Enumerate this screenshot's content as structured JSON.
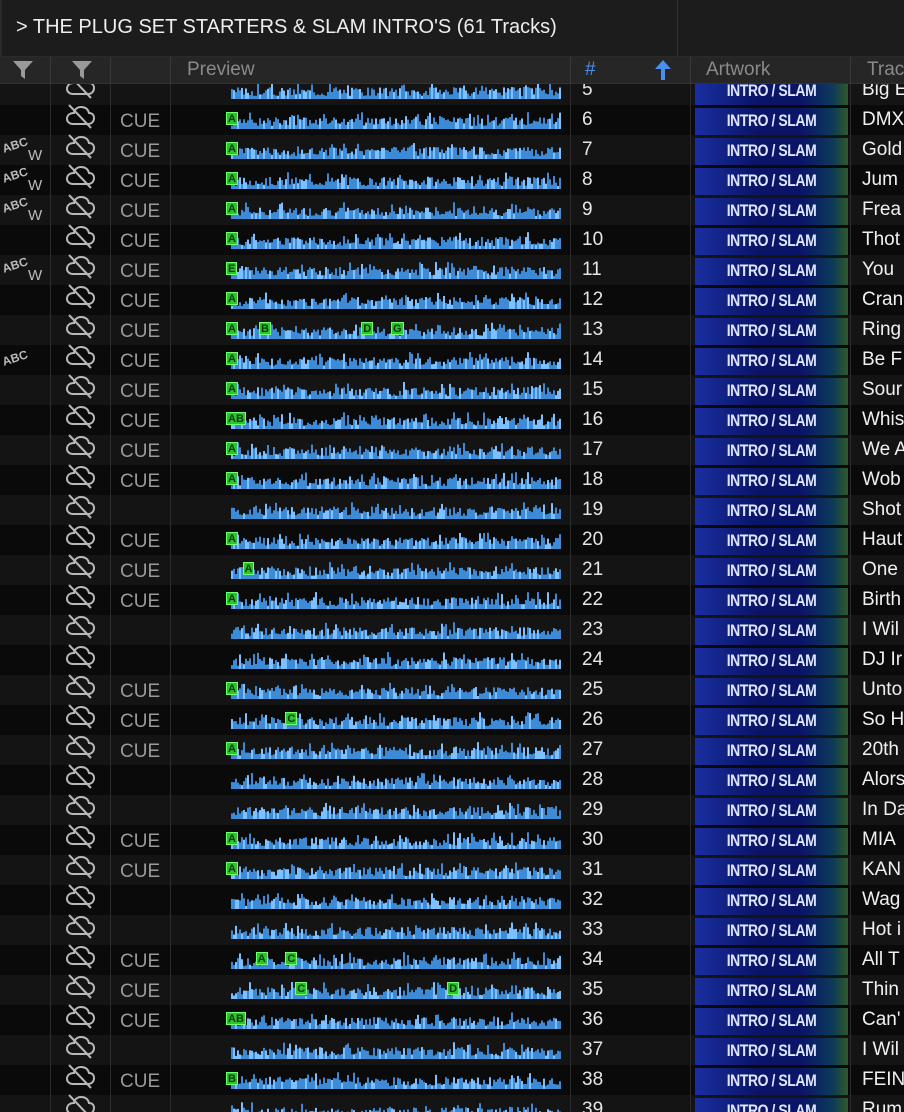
{
  "playlist": {
    "title": "> THE PLUG SET STARTERS & SLAM INTRO'S (61 Tracks)"
  },
  "columns": {
    "preview": "Preview",
    "number": "#",
    "artwork": "Artwork",
    "title": "Trac"
  },
  "artwork_label": "INTRO / SLAM",
  "cue_label": "CUE",
  "flags": {
    "abc": "ABC",
    "w": "W"
  },
  "icons": {
    "filter": "filter-icon",
    "cloud_off": "cloud-off-icon",
    "sort": "sort-ascending-icon"
  },
  "colors": {
    "accent": "#4a8ff0",
    "marker": "#2ec22e",
    "waveform": "#3d8ad6"
  },
  "tracks": [
    {
      "num": "5",
      "title": "Big E",
      "cue": false,
      "abc": "",
      "markers": []
    },
    {
      "num": "6",
      "title": "DMX",
      "cue": true,
      "abc": "",
      "markers": [
        {
          "l": "A",
          "p": 0
        }
      ]
    },
    {
      "num": "7",
      "title": "Gold",
      "cue": true,
      "abc": "ABCW",
      "markers": [
        {
          "l": "A",
          "p": 0
        }
      ]
    },
    {
      "num": "8",
      "title": "Jum",
      "cue": true,
      "abc": "ABCW",
      "markers": [
        {
          "l": "A",
          "p": 0
        }
      ]
    },
    {
      "num": "9",
      "title": "Frea",
      "cue": true,
      "abc": "ABCW",
      "markers": [
        {
          "l": "A",
          "p": 0
        }
      ]
    },
    {
      "num": "10",
      "title": "Thot",
      "cue": true,
      "abc": "",
      "markers": [
        {
          "l": "A",
          "p": 0
        }
      ]
    },
    {
      "num": "11",
      "title": "You",
      "cue": true,
      "abc": "ABCW",
      "markers": [
        {
          "l": "E",
          "p": 0
        }
      ]
    },
    {
      "num": "12",
      "title": "Cran",
      "cue": true,
      "abc": "",
      "markers": [
        {
          "l": "A",
          "p": 0
        }
      ]
    },
    {
      "num": "13",
      "title": "Ring",
      "cue": true,
      "abc": "",
      "markers": [
        {
          "l": "A",
          "p": 0
        },
        {
          "l": "B",
          "p": 0.1
        },
        {
          "l": "D",
          "p": 0.41
        },
        {
          "l": "G",
          "p": 0.5
        }
      ]
    },
    {
      "num": "14",
      "title": "Be F",
      "cue": true,
      "abc": "ABC",
      "markers": [
        {
          "l": "A",
          "p": 0
        }
      ]
    },
    {
      "num": "15",
      "title": "Sour",
      "cue": true,
      "abc": "",
      "markers": [
        {
          "l": "A",
          "p": 0
        }
      ]
    },
    {
      "num": "16",
      "title": "Whis",
      "cue": true,
      "abc": "",
      "markers": [
        {
          "l": "AB",
          "p": 0
        }
      ]
    },
    {
      "num": "17",
      "title": "We A",
      "cue": true,
      "abc": "",
      "markers": [
        {
          "l": "A",
          "p": 0
        }
      ]
    },
    {
      "num": "18",
      "title": "Wob",
      "cue": true,
      "abc": "",
      "markers": [
        {
          "l": "A",
          "p": 0
        }
      ]
    },
    {
      "num": "19",
      "title": "Shot",
      "cue": false,
      "abc": "",
      "markers": []
    },
    {
      "num": "20",
      "title": "Haut",
      "cue": true,
      "abc": "",
      "markers": [
        {
          "l": "A",
          "p": 0
        }
      ]
    },
    {
      "num": "21",
      "title": "One",
      "cue": true,
      "abc": "",
      "markers": [
        {
          "l": "A",
          "p": 0.05
        }
      ]
    },
    {
      "num": "22",
      "title": "Birth",
      "cue": true,
      "abc": "",
      "markers": [
        {
          "l": "A",
          "p": 0
        }
      ]
    },
    {
      "num": "23",
      "title": "I Wil",
      "cue": false,
      "abc": "",
      "markers": []
    },
    {
      "num": "24",
      "title": "DJ Ir",
      "cue": false,
      "abc": "",
      "markers": []
    },
    {
      "num": "25",
      "title": "Unto",
      "cue": true,
      "abc": "",
      "markers": [
        {
          "l": "A",
          "p": 0
        }
      ]
    },
    {
      "num": "26",
      "title": "So H",
      "cue": true,
      "abc": "",
      "markers": [
        {
          "l": "C",
          "p": 0.18
        }
      ]
    },
    {
      "num": "27",
      "title": "20th",
      "cue": true,
      "abc": "",
      "markers": [
        {
          "l": "A",
          "p": 0
        }
      ]
    },
    {
      "num": "28",
      "title": "Alors",
      "cue": false,
      "abc": "",
      "markers": []
    },
    {
      "num": "29",
      "title": "In Da",
      "cue": false,
      "abc": "",
      "markers": []
    },
    {
      "num": "30",
      "title": "MIA",
      "cue": true,
      "abc": "",
      "markers": [
        {
          "l": "A",
          "p": 0
        }
      ]
    },
    {
      "num": "31",
      "title": "KAN",
      "cue": true,
      "abc": "",
      "markers": [
        {
          "l": "A",
          "p": 0
        }
      ]
    },
    {
      "num": "32",
      "title": "Wag",
      "cue": false,
      "abc": "",
      "markers": []
    },
    {
      "num": "33",
      "title": "Hot i",
      "cue": false,
      "abc": "",
      "markers": []
    },
    {
      "num": "34",
      "title": "All T",
      "cue": true,
      "abc": "",
      "markers": [
        {
          "l": "A",
          "p": 0.09
        },
        {
          "l": "C",
          "p": 0.18
        }
      ]
    },
    {
      "num": "35",
      "title": "Thin",
      "cue": true,
      "abc": "",
      "markers": [
        {
          "l": "C",
          "p": 0.21
        },
        {
          "l": "D",
          "p": 0.67
        }
      ]
    },
    {
      "num": "36",
      "title": "Can'",
      "cue": true,
      "abc": "",
      "markers": [
        {
          "l": "AB",
          "p": 0
        }
      ]
    },
    {
      "num": "37",
      "title": "I Wil",
      "cue": false,
      "abc": "",
      "markers": []
    },
    {
      "num": "38",
      "title": "FEIN",
      "cue": true,
      "abc": "",
      "markers": [
        {
          "l": "B",
          "p": 0
        }
      ]
    },
    {
      "num": "39",
      "title": "Rum",
      "cue": false,
      "abc": "",
      "markers": []
    }
  ]
}
